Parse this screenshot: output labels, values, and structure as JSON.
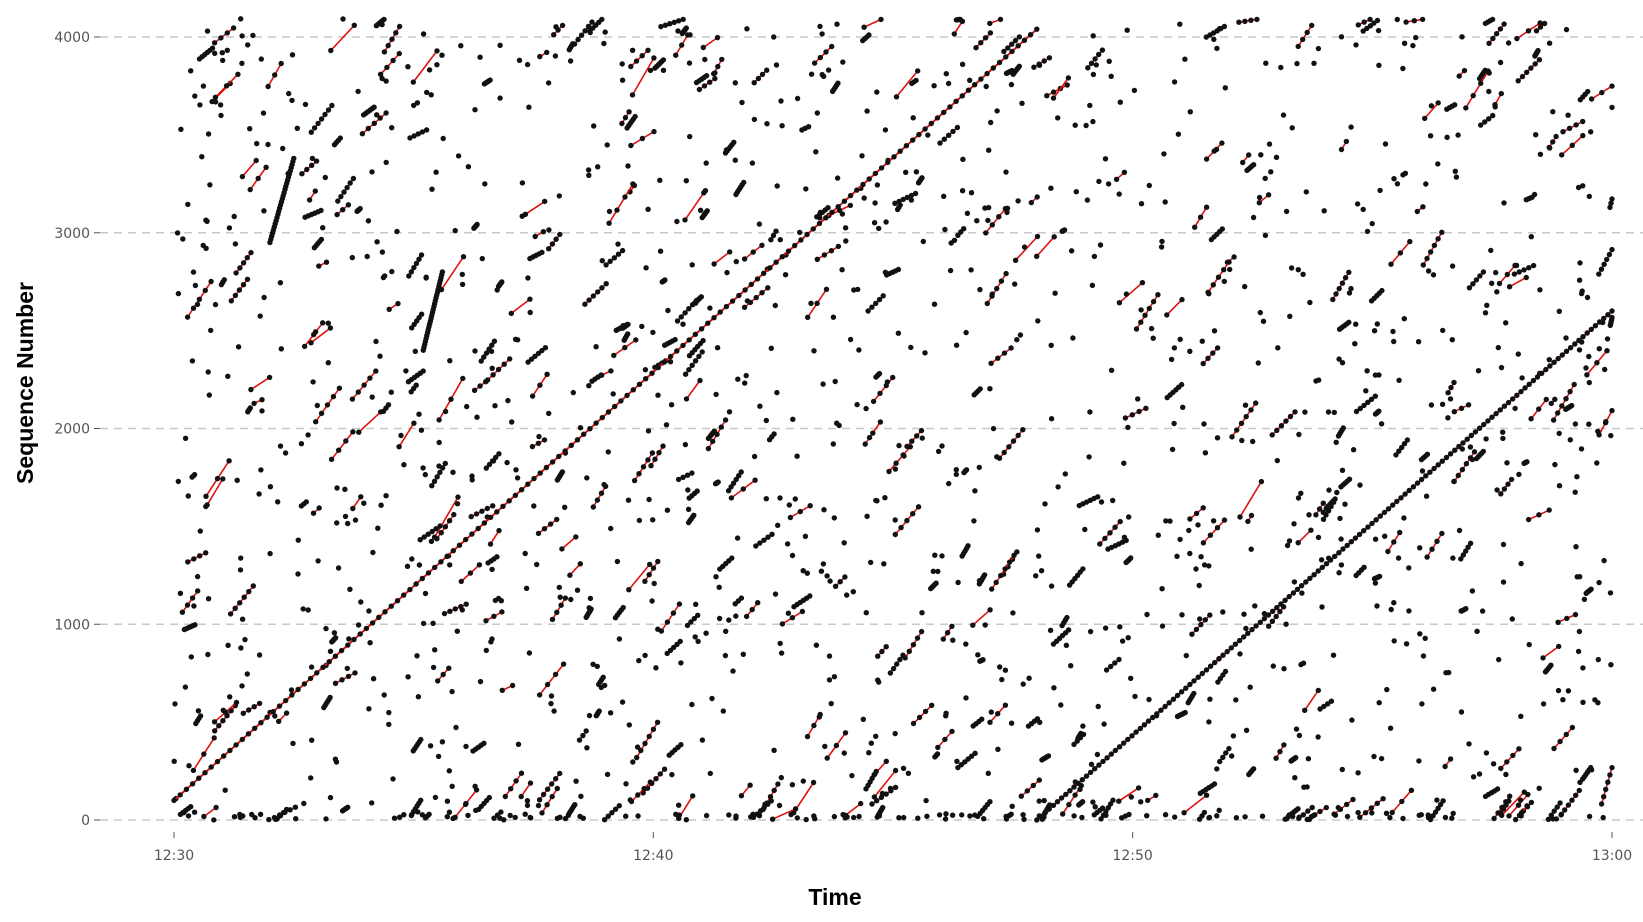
{
  "chart_data": {
    "type": "scatter",
    "title": "",
    "xlabel": "Time",
    "ylabel": "Sequence Number",
    "x_range": [
      "12:30",
      "13:00"
    ],
    "ylim": [
      0,
      4096
    ],
    "x_ticks": [
      "12:30",
      "12:40",
      "12:50",
      "13:00"
    ],
    "y_ticks": [
      "0",
      "1000",
      "2000",
      "3000",
      "4000"
    ],
    "grid": "horizontal dashed",
    "legend": "none",
    "colors": {
      "points": "#111111",
      "links": "#e01010",
      "grid": "#c8c8c8"
    },
    "main_series": [
      {
        "name": "",
        "start": {
          "t": "12:30",
          "seq": 100
        },
        "end": {
          "t": "12:48",
          "seq": 4040
        }
      },
      {
        "name": "",
        "start": {
          "t": "12:48",
          "seq": 0
        },
        "end": {
          "t": "13:00",
          "seq": 2600
        }
      }
    ],
    "dense_runs": [
      {
        "start": {
          "t": "12:32",
          "seq": 2950
        },
        "end": {
          "t": "12:32.5",
          "seq": 3380
        }
      },
      {
        "start": {
          "t": "12:35.2",
          "seq": 2400
        },
        "end": {
          "t": "12:35.6",
          "seq": 2800
        }
      }
    ],
    "background_points": "many short linked runs and isolated points scattered over the full range"
  }
}
